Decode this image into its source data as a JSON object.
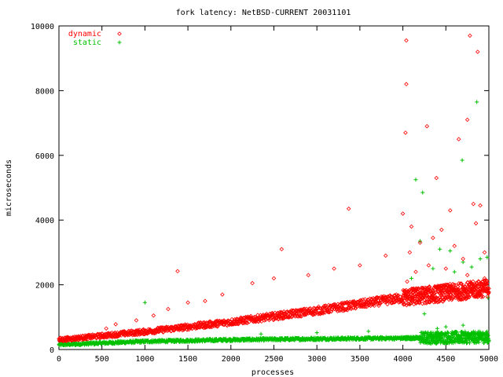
{
  "chart_data": {
    "type": "scatter",
    "title": "fork latency: NetBSD-CURRENT 20031101",
    "xlabel": "processes",
    "ylabel": "microseconds",
    "xlim": [
      0,
      5000
    ],
    "ylim": [
      0,
      10000
    ],
    "x_ticks": [
      0,
      500,
      1000,
      1500,
      2000,
      2500,
      3000,
      3500,
      4000,
      4500,
      5000
    ],
    "y_ticks": [
      0,
      2000,
      4000,
      6000,
      8000,
      10000
    ],
    "grid": false,
    "legend_position": "top-left",
    "series": [
      {
        "name": "dynamic",
        "color": "#ff0000",
        "marker": "diamond",
        "main_trend": {
          "x": [
            0,
            1000,
            2000,
            3000,
            4000,
            4500,
            5000
          ],
          "y": [
            300,
            550,
            850,
            1200,
            1600,
            1750,
            1900
          ]
        },
        "outliers": [
          {
            "x": 1380,
            "y": 2420
          },
          {
            "x": 2590,
            "y": 3100
          },
          {
            "x": 3370,
            "y": 4350
          },
          {
            "x": 4040,
            "y": 9550
          },
          {
            "x": 4040,
            "y": 8200
          },
          {
            "x": 4030,
            "y": 6700
          },
          {
            "x": 4280,
            "y": 6900
          },
          {
            "x": 4650,
            "y": 6500
          },
          {
            "x": 4750,
            "y": 7100
          },
          {
            "x": 4780,
            "y": 9700
          },
          {
            "x": 4870,
            "y": 9200
          },
          {
            "x": 4000,
            "y": 4200
          },
          {
            "x": 4390,
            "y": 5300
          },
          {
            "x": 4550,
            "y": 4300
          },
          {
            "x": 4820,
            "y": 4500
          },
          {
            "x": 4900,
            "y": 4450
          },
          {
            "x": 3800,
            "y": 2900
          },
          {
            "x": 3500,
            "y": 2600
          },
          {
            "x": 3200,
            "y": 2500
          },
          {
            "x": 2900,
            "y": 2300
          },
          {
            "x": 2500,
            "y": 2200
          },
          {
            "x": 2250,
            "y": 2050
          },
          {
            "x": 1900,
            "y": 1700
          },
          {
            "x": 1700,
            "y": 1500
          },
          {
            "x": 1500,
            "y": 1450
          },
          {
            "x": 1270,
            "y": 1250
          },
          {
            "x": 1100,
            "y": 1050
          },
          {
            "x": 900,
            "y": 900
          },
          {
            "x": 660,
            "y": 780
          },
          {
            "x": 550,
            "y": 650
          },
          {
            "x": 4100,
            "y": 3800
          },
          {
            "x": 4200,
            "y": 3300
          },
          {
            "x": 4450,
            "y": 3700
          },
          {
            "x": 4600,
            "y": 3200
          },
          {
            "x": 4700,
            "y": 2800
          },
          {
            "x": 4950,
            "y": 3000
          },
          {
            "x": 4050,
            "y": 2100
          },
          {
            "x": 4150,
            "y": 2400
          },
          {
            "x": 4300,
            "y": 2600
          },
          {
            "x": 4500,
            "y": 2500
          },
          {
            "x": 4750,
            "y": 2300
          },
          {
            "x": 4950,
            "y": 2200
          },
          {
            "x": 4080,
            "y": 3000
          },
          {
            "x": 4350,
            "y": 3450
          },
          {
            "x": 4850,
            "y": 3900
          }
        ]
      },
      {
        "name": "static",
        "color": "#00c000",
        "marker": "plus",
        "main_trend": {
          "x": [
            0,
            1000,
            2000,
            3000,
            4000,
            4500,
            5000
          ],
          "y": [
            150,
            250,
            300,
            330,
            350,
            370,
            380
          ]
        },
        "outliers": [
          {
            "x": 1000,
            "y": 1450
          },
          {
            "x": 4150,
            "y": 5250
          },
          {
            "x": 4230,
            "y": 4850
          },
          {
            "x": 4860,
            "y": 7650
          },
          {
            "x": 4690,
            "y": 5850
          },
          {
            "x": 4200,
            "y": 3350
          },
          {
            "x": 4430,
            "y": 3100
          },
          {
            "x": 4550,
            "y": 3050
          },
          {
            "x": 4700,
            "y": 2700
          },
          {
            "x": 4900,
            "y": 2800
          },
          {
            "x": 4980,
            "y": 2850
          },
          {
            "x": 4100,
            "y": 2200
          },
          {
            "x": 4350,
            "y": 2500
          },
          {
            "x": 4600,
            "y": 2400
          },
          {
            "x": 4800,
            "y": 2550
          },
          {
            "x": 4990,
            "y": 1600
          },
          {
            "x": 4080,
            "y": 1400
          },
          {
            "x": 4250,
            "y": 1100
          },
          {
            "x": 2350,
            "y": 480
          },
          {
            "x": 3000,
            "y": 520
          },
          {
            "x": 3600,
            "y": 560
          },
          {
            "x": 4500,
            "y": 700
          },
          {
            "x": 4700,
            "y": 750
          },
          {
            "x": 4400,
            "y": 650
          }
        ]
      }
    ]
  }
}
